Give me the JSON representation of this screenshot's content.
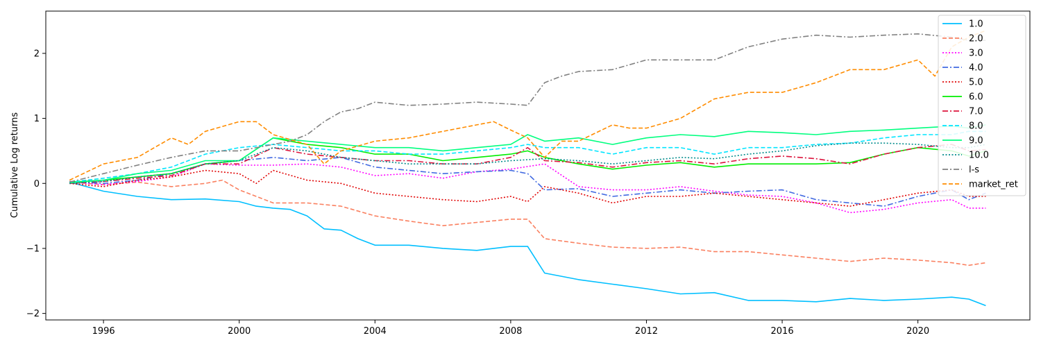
{
  "chart_data": {
    "type": "line",
    "title": "",
    "xlabel": "",
    "ylabel": "Cumulative Log returns",
    "xlim": [
      1994.3,
      2023.3
    ],
    "ylim": [
      -2.1,
      2.65
    ],
    "xticks": [
      1996,
      2000,
      2004,
      2008,
      2012,
      2016,
      2020
    ],
    "yticks": [
      -2,
      -1,
      0,
      1,
      2
    ],
    "grid": false,
    "legend_position": "top-right",
    "series": [
      {
        "name": "1.0",
        "color": "#00bfff",
        "dash": "solid",
        "x": [
          1995.0,
          1996.0,
          1997.0,
          1998.0,
          1999.0,
          2000.0,
          2000.5,
          2001.0,
          2001.5,
          2002.0,
          2002.5,
          2003.0,
          2003.5,
          2004.0,
          2005.0,
          2006.0,
          2007.0,
          2008.0,
          2008.5,
          2009.0,
          2010.0,
          2011.0,
          2012.0,
          2013.0,
          2014.0,
          2015.0,
          2016.0,
          2017.0,
          2018.0,
          2019.0,
          2020.0,
          2021.0,
          2021.5,
          2022.0
        ],
        "y": [
          0.02,
          -0.12,
          -0.2,
          -0.25,
          -0.24,
          -0.28,
          -0.35,
          -0.38,
          -0.4,
          -0.5,
          -0.7,
          -0.72,
          -0.85,
          -0.95,
          -0.95,
          -1.0,
          -1.03,
          -0.97,
          -0.97,
          -1.38,
          -1.48,
          -1.55,
          -1.62,
          -1.7,
          -1.68,
          -1.8,
          -1.8,
          -1.82,
          -1.77,
          -1.8,
          -1.78,
          -1.75,
          -1.78,
          -1.88
        ]
      },
      {
        "name": "2.0",
        "color": "#fa8060",
        "dash": "dashed",
        "x": [
          1995.0,
          1996.0,
          1997.0,
          1998.0,
          1999.0,
          1999.5,
          2000.0,
          2000.5,
          2001.0,
          2002.0,
          2003.0,
          2004.0,
          2005.0,
          2006.0,
          2007.0,
          2008.0,
          2008.5,
          2009.0,
          2010.0,
          2011.0,
          2012.0,
          2013.0,
          2014.0,
          2015.0,
          2016.0,
          2017.0,
          2018.0,
          2019.0,
          2020.0,
          2021.0,
          2021.5,
          2022.0
        ],
        "y": [
          0.02,
          -0.02,
          0.02,
          -0.05,
          0.0,
          0.05,
          -0.1,
          -0.2,
          -0.3,
          -0.3,
          -0.35,
          -0.5,
          -0.58,
          -0.65,
          -0.6,
          -0.55,
          -0.55,
          -0.85,
          -0.92,
          -0.98,
          -1.0,
          -0.98,
          -1.05,
          -1.05,
          -1.1,
          -1.15,
          -1.2,
          -1.15,
          -1.18,
          -1.22,
          -1.26,
          -1.22
        ]
      },
      {
        "name": "3.0",
        "color": "#ff00ff",
        "dash": "dotted",
        "x": [
          1995.0,
          1996.0,
          1997.0,
          1998.0,
          1999.0,
          2000.0,
          2001.0,
          2002.0,
          2003.0,
          2004.0,
          2005.0,
          2006.0,
          2007.0,
          2008.0,
          2009.0,
          2010.0,
          2011.0,
          2012.0,
          2013.0,
          2014.0,
          2015.0,
          2016.0,
          2017.0,
          2018.0,
          2019.0,
          2020.0,
          2021.0,
          2021.5,
          2022.0
        ],
        "y": [
          0.02,
          -0.02,
          0.03,
          0.1,
          0.3,
          0.28,
          0.28,
          0.3,
          0.25,
          0.12,
          0.15,
          0.08,
          0.18,
          0.22,
          0.3,
          -0.05,
          -0.1,
          -0.1,
          -0.05,
          -0.12,
          -0.18,
          -0.2,
          -0.3,
          -0.45,
          -0.4,
          -0.3,
          -0.25,
          -0.38,
          -0.38
        ]
      },
      {
        "name": "4.0",
        "color": "#4169e1",
        "dash": "dashdot",
        "x": [
          1995.0,
          1996.0,
          1997.0,
          1998.0,
          1999.0,
          2000.0,
          2001.0,
          2002.0,
          2003.0,
          2004.0,
          2005.0,
          2006.0,
          2007.0,
          2008.0,
          2008.5,
          2009.0,
          2010.0,
          2011.0,
          2012.0,
          2013.0,
          2014.0,
          2015.0,
          2016.0,
          2017.0,
          2018.0,
          2019.0,
          2020.0,
          2021.0,
          2021.5,
          2022.0
        ],
        "y": [
          0.03,
          0.0,
          0.05,
          0.15,
          0.3,
          0.35,
          0.4,
          0.35,
          0.4,
          0.25,
          0.2,
          0.15,
          0.18,
          0.2,
          0.15,
          -0.1,
          -0.08,
          -0.2,
          -0.15,
          -0.1,
          -0.15,
          -0.12,
          -0.1,
          -0.25,
          -0.3,
          -0.35,
          -0.2,
          -0.1,
          -0.25,
          -0.15
        ]
      },
      {
        "name": "5.0",
        "color": "#e00000",
        "dash": "dotted",
        "x": [
          1995.0,
          1996.0,
          1997.0,
          1998.0,
          1999.0,
          2000.0,
          2000.5,
          2001.0,
          2002.0,
          2003.0,
          2004.0,
          2005.0,
          2006.0,
          2007.0,
          2008.0,
          2008.5,
          2009.0,
          2010.0,
          2011.0,
          2012.0,
          2013.0,
          2014.0,
          2015.0,
          2016.0,
          2017.0,
          2018.0,
          2019.0,
          2020.0,
          2021.0,
          2021.5,
          2022.0
        ],
        "y": [
          0.0,
          -0.05,
          0.05,
          0.1,
          0.2,
          0.15,
          0.0,
          0.2,
          0.05,
          0.0,
          -0.15,
          -0.2,
          -0.25,
          -0.28,
          -0.2,
          -0.28,
          -0.05,
          -0.15,
          -0.3,
          -0.2,
          -0.2,
          -0.15,
          -0.2,
          -0.25,
          -0.3,
          -0.35,
          -0.25,
          -0.15,
          -0.1,
          -0.2,
          -0.2
        ]
      },
      {
        "name": "6.0",
        "color": "#00ee00",
        "dash": "solid",
        "x": [
          1995.0,
          1996.0,
          1997.0,
          1998.0,
          1999.0,
          2000.0,
          2001.0,
          2002.0,
          2003.0,
          2004.0,
          2005.0,
          2006.0,
          2007.0,
          2008.0,
          2008.5,
          2009.0,
          2010.0,
          2011.0,
          2012.0,
          2013.0,
          2014.0,
          2015.0,
          2016.0,
          2017.0,
          2018.0,
          2019.0,
          2020.0,
          2021.0,
          2021.5,
          2022.0
        ],
        "y": [
          0.02,
          0.05,
          0.1,
          0.15,
          0.3,
          0.35,
          0.7,
          0.6,
          0.55,
          0.45,
          0.45,
          0.35,
          0.4,
          0.45,
          0.5,
          0.4,
          0.3,
          0.22,
          0.28,
          0.32,
          0.25,
          0.3,
          0.3,
          0.3,
          0.32,
          0.45,
          0.55,
          0.5,
          0.42,
          0.5
        ]
      },
      {
        "name": "7.0",
        "color": "#dc143c",
        "dash": "dashdot",
        "x": [
          1995.0,
          1996.0,
          1997.0,
          1998.0,
          1999.0,
          2000.0,
          2001.0,
          2002.0,
          2003.0,
          2004.0,
          2005.0,
          2006.0,
          2007.0,
          2008.0,
          2008.5,
          2009.0,
          2010.0,
          2011.0,
          2012.0,
          2013.0,
          2014.0,
          2015.0,
          2016.0,
          2017.0,
          2018.0,
          2019.0,
          2020.0,
          2021.0,
          2021.5,
          2022.0
        ],
        "y": [
          0.0,
          0.03,
          0.08,
          0.12,
          0.3,
          0.3,
          0.55,
          0.45,
          0.4,
          0.35,
          0.35,
          0.3,
          0.3,
          0.4,
          0.55,
          0.35,
          0.32,
          0.25,
          0.32,
          0.35,
          0.3,
          0.38,
          0.42,
          0.38,
          0.3,
          0.45,
          0.55,
          0.6,
          0.5,
          0.52
        ]
      },
      {
        "name": "8.0",
        "color": "#00e5ff",
        "dash": "dashed",
        "x": [
          1995.0,
          1996.0,
          1997.0,
          1998.0,
          1999.0,
          2000.0,
          2001.0,
          2002.0,
          2003.0,
          2004.0,
          2005.0,
          2006.0,
          2007.0,
          2008.0,
          2008.5,
          2009.0,
          2010.0,
          2011.0,
          2012.0,
          2013.0,
          2014.0,
          2015.0,
          2016.0,
          2017.0,
          2018.0,
          2019.0,
          2020.0,
          2021.0,
          2021.5,
          2022.0
        ],
        "y": [
          0.02,
          0.08,
          0.15,
          0.25,
          0.45,
          0.55,
          0.6,
          0.55,
          0.5,
          0.5,
          0.45,
          0.45,
          0.5,
          0.55,
          0.6,
          0.55,
          0.55,
          0.45,
          0.55,
          0.55,
          0.45,
          0.55,
          0.55,
          0.6,
          0.62,
          0.7,
          0.75,
          0.75,
          0.8,
          0.8
        ]
      },
      {
        "name": "9.0",
        "color": "#00ff7f",
        "dash": "solid",
        "x": [
          1995.0,
          1996.0,
          1997.0,
          1998.0,
          1999.0,
          2000.0,
          2001.0,
          2002.0,
          2003.0,
          2004.0,
          2005.0,
          2006.0,
          2007.0,
          2008.0,
          2008.5,
          2009.0,
          2010.0,
          2011.0,
          2012.0,
          2013.0,
          2014.0,
          2015.0,
          2016.0,
          2017.0,
          2018.0,
          2019.0,
          2020.0,
          2021.0,
          2021.5,
          2022.0
        ],
        "y": [
          0.01,
          0.05,
          0.15,
          0.2,
          0.35,
          0.35,
          0.7,
          0.65,
          0.6,
          0.55,
          0.55,
          0.5,
          0.55,
          0.6,
          0.75,
          0.65,
          0.7,
          0.6,
          0.7,
          0.75,
          0.72,
          0.8,
          0.78,
          0.75,
          0.8,
          0.82,
          0.85,
          0.88,
          0.85,
          0.9
        ]
      },
      {
        "name": "10.0",
        "color": "#008b8b",
        "dash": "dotted",
        "x": [
          1995.0,
          1996.0,
          1997.0,
          1998.0,
          1999.0,
          2000.0,
          2001.0,
          2002.0,
          2003.0,
          2004.0,
          2005.0,
          2006.0,
          2007.0,
          2008.0,
          2009.0,
          2010.0,
          2011.0,
          2012.0,
          2013.0,
          2014.0,
          2015.0,
          2016.0,
          2017.0,
          2018.0,
          2019.0,
          2020.0,
          2021.0,
          2021.5,
          2022.0
        ],
        "y": [
          0.0,
          0.03,
          0.1,
          0.15,
          0.3,
          0.35,
          0.55,
          0.5,
          0.4,
          0.35,
          0.3,
          0.3,
          0.3,
          0.35,
          0.38,
          0.35,
          0.3,
          0.35,
          0.4,
          0.38,
          0.45,
          0.5,
          0.58,
          0.62,
          0.62,
          0.6,
          0.55,
          0.55,
          0.6
        ]
      },
      {
        "name": "l-s",
        "color": "#808080",
        "dash": "dashdot",
        "x": [
          1995.0,
          1996.0,
          1997.0,
          1998.0,
          1999.0,
          2000.0,
          2001.0,
          2001.5,
          2002.0,
          2002.5,
          2003.0,
          2003.5,
          2004.0,
          2005.0,
          2006.0,
          2007.0,
          2008.0,
          2008.5,
          2009.0,
          2009.5,
          2010.0,
          2011.0,
          2012.0,
          2013.0,
          2014.0,
          2015.0,
          2016.0,
          2017.0,
          2018.0,
          2019.0,
          2020.0,
          2021.0,
          2021.5,
          2022.0
        ],
        "y": [
          0.02,
          0.15,
          0.28,
          0.4,
          0.5,
          0.5,
          0.6,
          0.65,
          0.75,
          0.95,
          1.1,
          1.15,
          1.25,
          1.2,
          1.22,
          1.25,
          1.22,
          1.2,
          1.55,
          1.65,
          1.72,
          1.75,
          1.9,
          1.9,
          1.9,
          2.1,
          2.22,
          2.28,
          2.25,
          2.28,
          2.3,
          2.25,
          2.2,
          2.2
        ]
      },
      {
        "name": "market_ret",
        "color": "#ff8c00",
        "dash": "dashed",
        "x": [
          1995.0,
          1996.0,
          1997.0,
          1998.0,
          1998.5,
          1999.0,
          2000.0,
          2000.5,
          2001.0,
          2002.0,
          2002.5,
          2003.0,
          2004.0,
          2005.0,
          2006.0,
          2007.0,
          2007.5,
          2008.0,
          2008.5,
          2009.0,
          2009.5,
          2010.0,
          2011.0,
          2011.5,
          2012.0,
          2013.0,
          2014.0,
          2015.0,
          2016.0,
          2017.0,
          2018.0,
          2019.0,
          2020.0,
          2020.5,
          2021.0,
          2021.5,
          2022.0
        ],
        "y": [
          0.05,
          0.3,
          0.4,
          0.7,
          0.6,
          0.8,
          0.95,
          0.95,
          0.75,
          0.6,
          0.3,
          0.5,
          0.65,
          0.7,
          0.8,
          0.9,
          0.95,
          0.82,
          0.7,
          0.4,
          0.65,
          0.65,
          0.9,
          0.85,
          0.85,
          1.0,
          1.3,
          1.4,
          1.4,
          1.55,
          1.75,
          1.75,
          1.9,
          1.65,
          2.1,
          2.25,
          2.35
        ]
      }
    ]
  }
}
